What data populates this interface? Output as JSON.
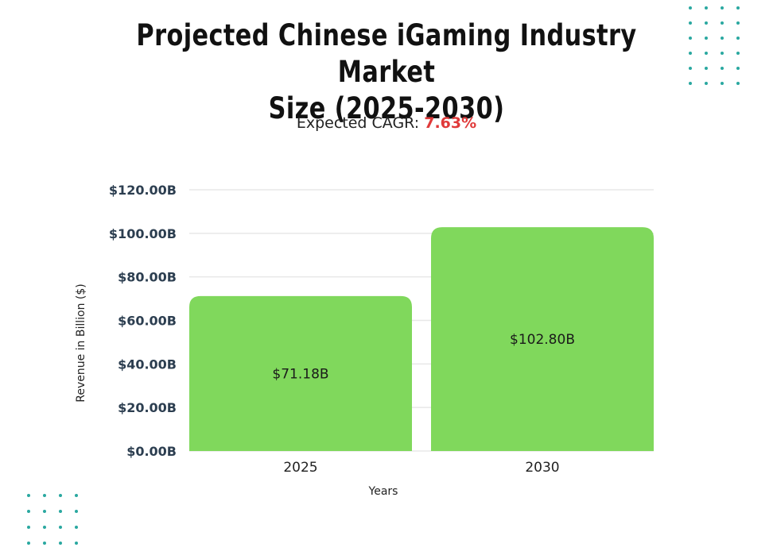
{
  "header": {
    "title_line1": "Projected Chinese iGaming Industry Market",
    "title_line2": "Size (2025-2030)",
    "subtitle_label": "Expected CAGR: ",
    "subtitle_value": "7.63%"
  },
  "colors": {
    "bar": "#80d85c",
    "accent": "#e03a3a",
    "decor_dots": "#2aa8a0",
    "grid": "#e8e8e8"
  },
  "chart_data": {
    "type": "bar",
    "title": "Projected Chinese iGaming Industry Market Size (2025-2030)",
    "subtitle": "Expected CAGR: 7.63%",
    "categories": [
      "2025",
      "2030"
    ],
    "values": [
      71.18,
      102.8
    ],
    "data_labels": [
      "$71.18B",
      "$102.80B"
    ],
    "xlabel": "Years",
    "ylabel": "Revenue in Billion ($)",
    "ylim": [
      0,
      120
    ],
    "yticks": [
      0,
      20,
      40,
      60,
      80,
      100,
      120
    ],
    "ytick_labels": [
      "$0.00B",
      "$20.00B",
      "$40.00B",
      "$60.00B",
      "$80.00B",
      "$100.00B",
      "$120.00B"
    ],
    "grid": true,
    "legend": "none"
  }
}
